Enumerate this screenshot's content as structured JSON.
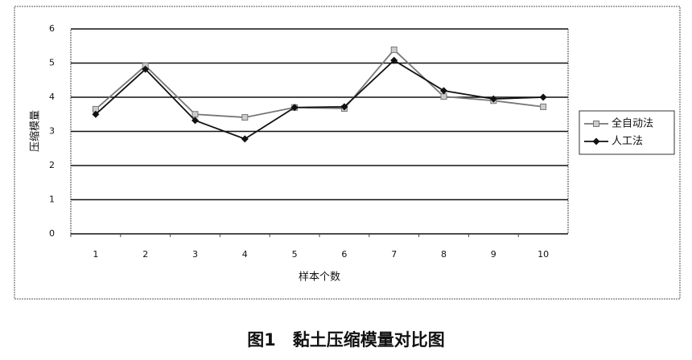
{
  "chart_data": {
    "type": "line",
    "title": "图1　黏土压缩模量对比图",
    "x_label": "样本个数",
    "y_label": "压缩模量",
    "categories": [
      "1",
      "2",
      "3",
      "4",
      "5",
      "6",
      "7",
      "8",
      "9",
      "10"
    ],
    "series": [
      {
        "name": "全自动法",
        "color": "#777777",
        "marker": "square",
        "values": [
          3.65,
          4.92,
          3.5,
          3.41,
          3.7,
          3.67,
          5.39,
          4.02,
          3.9,
          3.72
        ]
      },
      {
        "name": "人工法",
        "color": "#111111",
        "marker": "diamond",
        "values": [
          3.5,
          4.82,
          3.32,
          2.78,
          3.7,
          3.72,
          5.08,
          4.19,
          3.95,
          4.0
        ]
      }
    ],
    "ylim": [
      0,
      6
    ],
    "yticks": [
      0,
      1,
      2,
      3,
      4,
      5,
      6
    ],
    "grid": true,
    "legend": "right"
  }
}
